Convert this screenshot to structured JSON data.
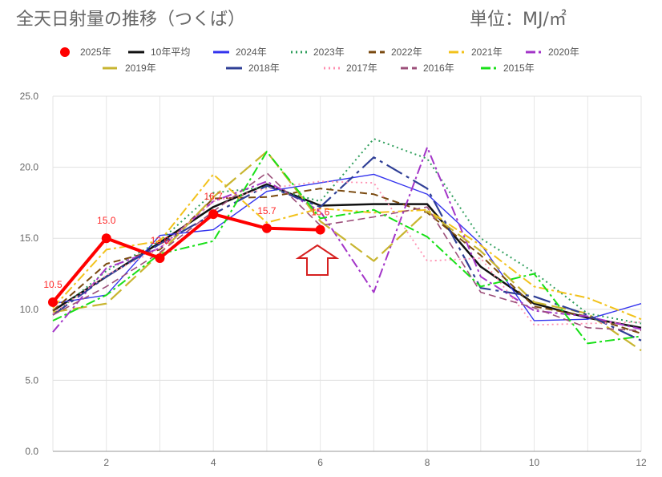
{
  "header": {
    "title": "全天日射量の推移（つくば）",
    "unit": "単位：MJ/㎡"
  },
  "chart_data": {
    "type": "line",
    "title": "全天日射量の推移（つくば）",
    "unit": "単位：MJ/㎡",
    "xlabel": "",
    "ylabel": "",
    "xlim": [
      1,
      12
    ],
    "ylim": [
      0,
      25
    ],
    "x": [
      1,
      2,
      3,
      4,
      5,
      6,
      7,
      8,
      9,
      10,
      11,
      12
    ],
    "x_ticks": [
      2,
      4,
      6,
      8,
      10,
      12
    ],
    "y_ticks": [
      0,
      5,
      10,
      15,
      20,
      25
    ],
    "y_tick_labels": [
      "0.0",
      "5.0",
      "10.0",
      "15.0",
      "20.0",
      "25.0"
    ],
    "grid": true,
    "legend_position": "top",
    "annotation": "arrow-up",
    "series": [
      {
        "name": "2025年",
        "color": "#ff0000",
        "style": "solid",
        "width": 4,
        "markers": true,
        "data_labels": true,
        "values": [
          10.5,
          15.0,
          13.6,
          16.7,
          15.7,
          15.6,
          null,
          null,
          null,
          null,
          null,
          null
        ]
      },
      {
        "name": "10年平均",
        "color": "#111111",
        "style": "solid",
        "width": 2.5,
        "values": [
          9.9,
          12.3,
          14.7,
          17.2,
          18.8,
          17.3,
          17.4,
          17.4,
          13.0,
          10.4,
          9.4,
          8.7
        ]
      },
      {
        "name": "2024年",
        "color": "#3333ee",
        "style": "solid",
        "width": 1.4,
        "values": [
          10.4,
          11.0,
          15.2,
          15.6,
          18.3,
          18.9,
          19.5,
          18.1,
          14.6,
          9.2,
          9.3,
          10.4
        ]
      },
      {
        "name": "2023年",
        "color": "#2e9e5b",
        "style": "dot",
        "width": 2,
        "values": [
          9.6,
          12.7,
          14.8,
          18.2,
          18.6,
          17.6,
          22.0,
          20.6,
          15.0,
          12.6,
          9.7,
          9.0
        ]
      },
      {
        "name": "2022年",
        "color": "#7a4a10",
        "style": "dash",
        "width": 2,
        "values": [
          9.9,
          13.2,
          14.2,
          17.8,
          17.9,
          18.5,
          18.1,
          16.8,
          13.8,
          10.2,
          9.5,
          8.3
        ]
      },
      {
        "name": "2021年",
        "color": "#f2c21b",
        "style": "dashdot",
        "width": 2,
        "values": [
          10.1,
          14.2,
          14.8,
          19.5,
          16.1,
          17.1,
          16.8,
          17.0,
          14.5,
          11.6,
          10.8,
          9.3
        ]
      },
      {
        "name": "2020年",
        "color": "#a335c8",
        "style": "dashdot",
        "width": 2,
        "values": [
          8.4,
          12.9,
          14.3,
          17.6,
          19.0,
          16.9,
          11.2,
          21.4,
          12.3,
          9.9,
          9.5,
          8.6
        ]
      },
      {
        "name": "2019年",
        "color": "#c8b530",
        "style": "longdash",
        "width": 2.2,
        "values": [
          9.8,
          10.4,
          13.9,
          17.9,
          21.1,
          16.2,
          13.4,
          16.9,
          14.1,
          10.5,
          9.7,
          7.1
        ]
      },
      {
        "name": "2018年",
        "color": "#2f3f96",
        "style": "longdashdot",
        "width": 2.2,
        "values": [
          9.6,
          12.3,
          14.6,
          16.7,
          18.7,
          17.2,
          20.7,
          18.5,
          11.5,
          10.9,
          9.6,
          7.8
        ]
      },
      {
        "name": "2017年",
        "color": "#ff8fb0",
        "style": "dot",
        "width": 1.8,
        "values": [
          9.7,
          12.4,
          14.3,
          17.6,
          18.5,
          19.0,
          18.9,
          13.4,
          13.6,
          8.9,
          9.0,
          9.1
        ]
      },
      {
        "name": "2016年",
        "color": "#9c4f7a",
        "style": "dash",
        "width": 1.6,
        "values": [
          9.6,
          11.6,
          14.0,
          16.9,
          19.6,
          15.9,
          16.5,
          17.2,
          11.2,
          10.1,
          8.7,
          8.5
        ]
      },
      {
        "name": "2015年",
        "color": "#18e018",
        "style": "dashdot",
        "width": 2,
        "values": [
          9.2,
          11.0,
          13.9,
          14.8,
          21.1,
          16.4,
          17.0,
          15.1,
          11.6,
          12.5,
          7.6,
          8.1
        ]
      }
    ]
  }
}
